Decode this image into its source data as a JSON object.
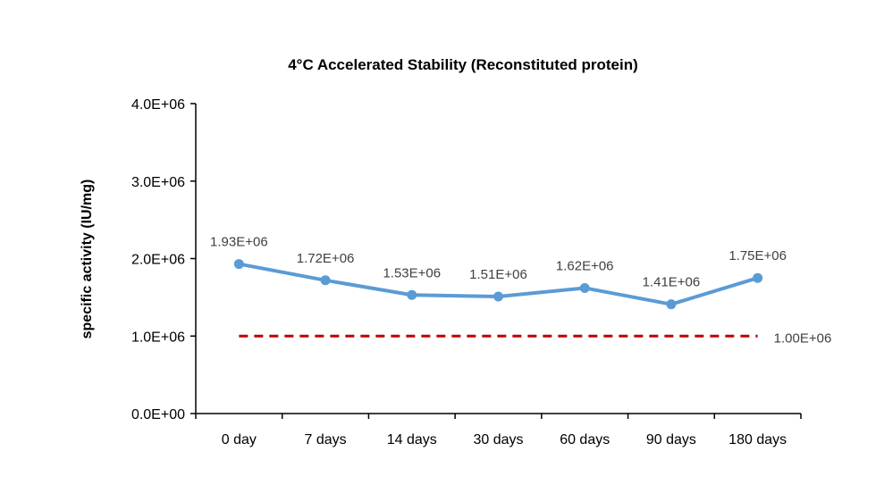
{
  "chart_data": {
    "type": "line",
    "title": "4°C Accelerated Stability (Reconstituted protein)",
    "xlabel": "",
    "ylabel": "specific activity  (IU/mg)",
    "categories": [
      "0 day",
      "7 days",
      "14 days",
      "30 days",
      "60 days",
      "90 days",
      "180 days"
    ],
    "ylim": [
      0,
      4000000
    ],
    "yticks": [
      0,
      1000000,
      2000000,
      3000000,
      4000000
    ],
    "ytick_labels": [
      "0.0E+00",
      "1.0E+06",
      "2.0E+06",
      "3.0E+06",
      "4.0E+06"
    ],
    "grid": false,
    "legend": "none",
    "series": [
      {
        "values": [
          1930000,
          1720000,
          1530000,
          1510000,
          1620000,
          1410000,
          1750000
        ],
        "labels": [
          "1.93E+06",
          "1.72E+06",
          "1.53E+06",
          "1.51E+06",
          "1.62E+06",
          "1.41E+06",
          "1.75E+06"
        ],
        "color": "#5B9BD5",
        "style": "solid",
        "markers": true
      },
      {
        "values": [
          1000000,
          1000000,
          1000000,
          1000000,
          1000000,
          1000000,
          1000000
        ],
        "end_label": "1.00E+06",
        "color": "#C00000",
        "style": "dashed",
        "markers": false
      }
    ]
  }
}
